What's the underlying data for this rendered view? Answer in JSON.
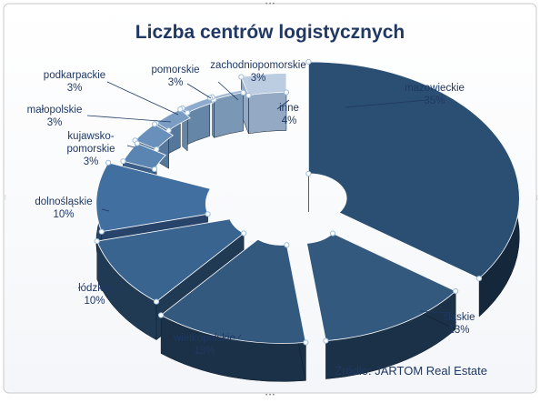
{
  "chart_data": {
    "type": "pie",
    "title": "Liczba centrów logistycznych",
    "source": "Źródło: JARTOM Real Estate",
    "slices": [
      {
        "name": "mazowieckie",
        "value": 35,
        "label": "35%"
      },
      {
        "name": "śląskie",
        "value": 13,
        "label": "13%"
      },
      {
        "name": "wielkopolskie",
        "value": 13,
        "label": "13%"
      },
      {
        "name": "łódzkie",
        "value": 10,
        "label": "10%"
      },
      {
        "name": "dolnośląskie",
        "value": 10,
        "label": "10%"
      },
      {
        "name": "kujawsko-pomorskie",
        "value": 3,
        "label": "3%"
      },
      {
        "name": "małopolskie",
        "value": 3,
        "label": "3%"
      },
      {
        "name": "podkarpackie",
        "value": 3,
        "label": "3%"
      },
      {
        "name": "pomorskie",
        "value": 3,
        "label": "3%"
      },
      {
        "name": "zachodniopomorskie",
        "value": 3,
        "label": "3%"
      },
      {
        "name": "inne",
        "value": 4,
        "label": "4%"
      }
    ],
    "legend": "none",
    "style": "exploded 3D pie"
  },
  "colors": {
    "title": "#1f3864",
    "label": "#1f3864",
    "border": "#bfbfbf",
    "handle": "#9fbfdc"
  }
}
